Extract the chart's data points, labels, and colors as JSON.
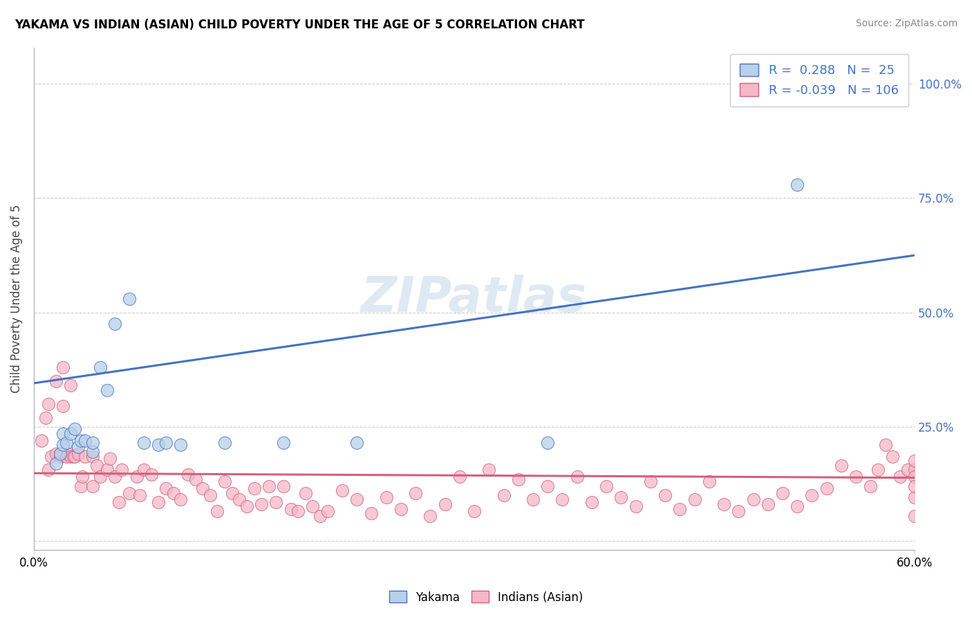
{
  "title": "YAKAMA VS INDIAN (ASIAN) CHILD POVERTY UNDER THE AGE OF 5 CORRELATION CHART",
  "source": "Source: ZipAtlas.com",
  "ylabel": "Child Poverty Under the Age of 5",
  "ytick_vals": [
    0.0,
    0.25,
    0.5,
    0.75,
    1.0
  ],
  "ytick_labels": [
    "",
    "25.0%",
    "50.0%",
    "75.0%",
    "100.0%"
  ],
  "xmin": 0.0,
  "xmax": 0.6,
  "ymin": -0.02,
  "ymax": 1.08,
  "watermark": "ZIPatlas",
  "legend_blue_R": "0.288",
  "legend_blue_N": "25",
  "legend_pink_R": "-0.039",
  "legend_pink_N": "106",
  "legend_label_blue": "Yakama",
  "legend_label_pink": "Indians (Asian)",
  "blue_fill": "#b8d0e8",
  "pink_fill": "#f5b8c8",
  "blue_edge": "#4472c4",
  "pink_edge": "#d4607a",
  "blue_line": "#4472c4",
  "pink_line": "#d4607a",
  "blue_line_x": [
    0.0,
    0.6
  ],
  "blue_line_y": [
    0.345,
    0.625
  ],
  "pink_line_x": [
    0.0,
    0.6
  ],
  "pink_line_y": [
    0.148,
    0.138
  ],
  "yakama_x": [
    0.015,
    0.018,
    0.02,
    0.02,
    0.022,
    0.025,
    0.028,
    0.03,
    0.032,
    0.035,
    0.04,
    0.04,
    0.045,
    0.05,
    0.055,
    0.065,
    0.075,
    0.085,
    0.09,
    0.1,
    0.13,
    0.17,
    0.22,
    0.35,
    0.52
  ],
  "yakama_y": [
    0.17,
    0.19,
    0.21,
    0.235,
    0.215,
    0.235,
    0.245,
    0.205,
    0.22,
    0.22,
    0.195,
    0.215,
    0.38,
    0.33,
    0.475,
    0.53,
    0.215,
    0.21,
    0.215,
    0.21,
    0.215,
    0.215,
    0.215,
    0.215,
    0.78
  ],
  "indian_x": [
    0.005,
    0.008,
    0.01,
    0.01,
    0.012,
    0.015,
    0.015,
    0.018,
    0.02,
    0.02,
    0.022,
    0.023,
    0.025,
    0.025,
    0.027,
    0.028,
    0.03,
    0.032,
    0.033,
    0.035,
    0.04,
    0.04,
    0.043,
    0.045,
    0.05,
    0.052,
    0.055,
    0.058,
    0.06,
    0.065,
    0.07,
    0.072,
    0.075,
    0.08,
    0.085,
    0.09,
    0.095,
    0.1,
    0.105,
    0.11,
    0.115,
    0.12,
    0.125,
    0.13,
    0.135,
    0.14,
    0.145,
    0.15,
    0.155,
    0.16,
    0.165,
    0.17,
    0.175,
    0.18,
    0.185,
    0.19,
    0.195,
    0.2,
    0.21,
    0.22,
    0.23,
    0.24,
    0.25,
    0.26,
    0.27,
    0.28,
    0.29,
    0.3,
    0.31,
    0.32,
    0.33,
    0.34,
    0.35,
    0.36,
    0.37,
    0.38,
    0.39,
    0.4,
    0.41,
    0.42,
    0.43,
    0.44,
    0.45,
    0.46,
    0.47,
    0.48,
    0.49,
    0.5,
    0.51,
    0.52,
    0.53,
    0.54,
    0.55,
    0.56,
    0.57,
    0.575,
    0.58,
    0.585,
    0.59,
    0.595,
    0.6,
    0.6,
    0.6,
    0.6,
    0.6,
    0.6
  ],
  "indian_y": [
    0.22,
    0.27,
    0.3,
    0.155,
    0.185,
    0.35,
    0.19,
    0.185,
    0.38,
    0.295,
    0.185,
    0.19,
    0.34,
    0.185,
    0.185,
    0.185,
    0.19,
    0.12,
    0.14,
    0.185,
    0.185,
    0.12,
    0.165,
    0.14,
    0.155,
    0.18,
    0.14,
    0.085,
    0.155,
    0.105,
    0.14,
    0.1,
    0.155,
    0.145,
    0.085,
    0.115,
    0.105,
    0.09,
    0.145,
    0.135,
    0.115,
    0.1,
    0.065,
    0.13,
    0.105,
    0.09,
    0.075,
    0.115,
    0.08,
    0.12,
    0.085,
    0.12,
    0.07,
    0.065,
    0.105,
    0.075,
    0.055,
    0.065,
    0.11,
    0.09,
    0.06,
    0.095,
    0.07,
    0.105,
    0.055,
    0.08,
    0.14,
    0.065,
    0.155,
    0.1,
    0.135,
    0.09,
    0.12,
    0.09,
    0.14,
    0.085,
    0.12,
    0.095,
    0.075,
    0.13,
    0.1,
    0.07,
    0.09,
    0.13,
    0.08,
    0.065,
    0.09,
    0.08,
    0.105,
    0.075,
    0.1,
    0.115,
    0.165,
    0.14,
    0.12,
    0.155,
    0.21,
    0.185,
    0.14,
    0.155,
    0.155,
    0.095,
    0.175,
    0.14,
    0.055,
    0.12
  ]
}
